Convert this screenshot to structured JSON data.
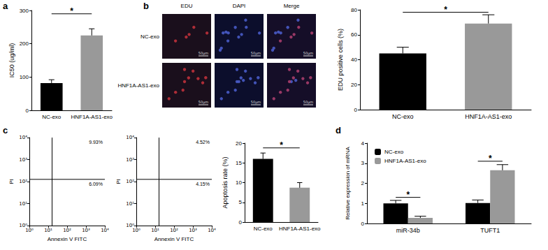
{
  "chart_data": [
    {
      "panel_label": "a",
      "type": "bar",
      "categories": [
        "NC-exo",
        "HNF1A-AS1-exo"
      ],
      "values": [
        82,
        225
      ],
      "errors": [
        10,
        20
      ],
      "colors": [
        "#000000",
        "#999999"
      ],
      "ylabel": "IC50 (ug/ml)",
      "ylim": [
        0,
        300
      ],
      "yticks": [
        0,
        100,
        200,
        300
      ],
      "grid": false,
      "significance": [
        {
          "between": [
            "NC-exo",
            "HNF1A-AS1-exo"
          ],
          "y": 290,
          "label": "*"
        }
      ]
    },
    {
      "type": "bar",
      "categories": [
        "NC-exo",
        "HNF1A-AS1-exo"
      ],
      "values": [
        45,
        69
      ],
      "errors": [
        5,
        7
      ],
      "colors": [
        "#000000",
        "#999999"
      ],
      "ylabel": "EDU positive cells (%)",
      "ylim": [
        0,
        80
      ],
      "yticks": [
        0,
        20,
        40,
        60,
        80
      ],
      "grid": false,
      "significance": [
        {
          "between": [
            "NC-exo",
            "HNF1A-AS1-exo"
          ],
          "y": 78,
          "label": "*"
        }
      ]
    },
    {
      "panel_label": "c",
      "type": "scatter",
      "log": true,
      "xlabel": "Annexin V FITC",
      "ylabel": "PI",
      "grid": false,
      "xlim": [
        1,
        10000
      ],
      "ylim": [
        1,
        10000
      ],
      "xticks": [
        {
          "value": 1,
          "label": "10⁰"
        },
        {
          "value": 10,
          "label": "10¹"
        },
        {
          "value": 100,
          "label": "10²"
        },
        {
          "value": 1000,
          "label": "10³"
        },
        {
          "value": 10000,
          "label": "10⁴"
        }
      ],
      "yticks": [
        {
          "value": 1,
          "label": "10⁰"
        },
        {
          "value": 10,
          "label": "10¹"
        },
        {
          "value": 100,
          "label": "10²"
        },
        {
          "value": 1000,
          "label": "10³"
        },
        {
          "value": 10000,
          "label": "10⁴"
        }
      ],
      "quadrant_lines": {
        "x": 16,
        "y": 126
      },
      "quadrant_labels": {
        "upper_right": {
          "value": 9.93,
          "label": "9.93%"
        },
        "lower_right": {
          "value": 6.09,
          "label": "6.09%"
        }
      }
    },
    {
      "type": "scatter",
      "log": true,
      "xlabel": "Annexin V FITC",
      "ylabel": "PI",
      "grid": false,
      "xlim": [
        1,
        10000
      ],
      "ylim": [
        1,
        10000
      ],
      "xticks": [
        {
          "value": 1,
          "label": "10⁰"
        },
        {
          "value": 10,
          "label": "10¹"
        },
        {
          "value": 100,
          "label": "10²"
        },
        {
          "value": 1000,
          "label": "10³"
        },
        {
          "value": 10000,
          "label": "10⁴"
        }
      ],
      "yticks": [
        {
          "value": 1,
          "label": "10⁰"
        },
        {
          "value": 10,
          "label": "10¹"
        },
        {
          "value": 100,
          "label": "10²"
        },
        {
          "value": 1000,
          "label": "10³"
        },
        {
          "value": 10000,
          "label": "10⁴"
        }
      ],
      "quadrant_lines": {
        "x": 16,
        "y": 126
      },
      "quadrant_labels": {
        "upper_right": {
          "value": 4.52,
          "label": "4.52%"
        },
        "lower_right": {
          "value": 4.15,
          "label": "4.15%"
        }
      }
    },
    {
      "type": "bar",
      "categories": [
        "NC-exo",
        "HNF1A-AS1-exo"
      ],
      "values": [
        16,
        8.7
      ],
      "errors": [
        1.5,
        1.3
      ],
      "colors": [
        "#000000",
        "#999999"
      ],
      "ylabel": "Apoptosis rate (%)",
      "ylim": [
        0,
        20
      ],
      "yticks": [
        0,
        5,
        10,
        15,
        20
      ],
      "grid": false,
      "significance": [
        {
          "between": [
            "NC-exo",
            "HNF1A-AS1-exo"
          ],
          "y": 18.8,
          "label": "*"
        }
      ]
    },
    {
      "panel_label": "d",
      "type": "bar",
      "categories": [
        "miR-34b",
        "TUFT1"
      ],
      "series": [
        {
          "name": "NC-exo",
          "color": "#000000",
          "values": [
            1.0,
            1.02
          ],
          "errors": [
            0.15,
            0.15
          ]
        },
        {
          "name": "HNF1A-AS1-exo",
          "color": "#999999",
          "values": [
            0.28,
            2.65
          ],
          "errors": [
            0.08,
            0.28
          ]
        }
      ],
      "ylabel": "Relative expression of mRNA",
      "ylim": [
        0,
        4
      ],
      "yticks": [
        0,
        1,
        2,
        3,
        4
      ],
      "grid": false,
      "legend": "top-left",
      "significance": [
        {
          "category": "miR-34b",
          "between": [
            "NC-exo",
            "HNF1A-AS1-exo"
          ],
          "y": 1.3,
          "label": "*"
        },
        {
          "category": "TUFT1",
          "between": [
            "NC-exo",
            "HNF1A-AS1-exo"
          ],
          "y": 3.1,
          "label": "*"
        }
      ]
    }
  ],
  "image_panel": {
    "panel_label": "b",
    "columns": [
      "EDU",
      "DAPI",
      "Merge"
    ],
    "rows": [
      "NC-exo",
      "HNF1A-AS1-exo"
    ],
    "scale_bar": "50μm"
  }
}
